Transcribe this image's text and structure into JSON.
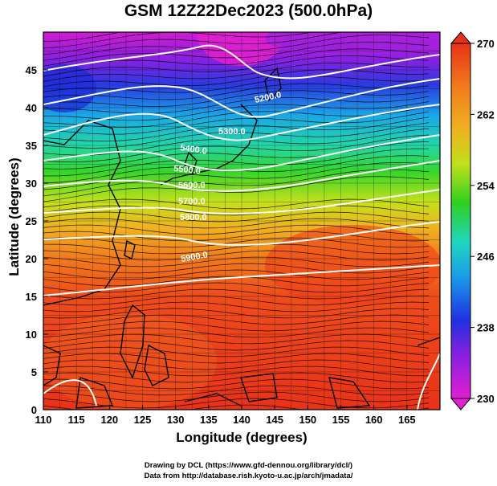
{
  "title": "GSM 12Z22Dec2023 (500.0hPa)",
  "xlabel": "Longitude (degrees)",
  "ylabel": "Latitude  (degrees)",
  "x_ticks": [
    "110",
    "115",
    "120",
    "125",
    "130",
    "135",
    "140",
    "145",
    "150",
    "155",
    "160",
    "165"
  ],
  "y_ticks": [
    "0",
    "5",
    "10",
    "15",
    "20",
    "25",
    "30",
    "35",
    "40",
    "45"
  ],
  "colorbar": {
    "ticks": [
      "230",
      "238",
      "246",
      "254",
      "262",
      "270"
    ],
    "min": 230,
    "max": 270
  },
  "contour_labels": [
    "5200.0",
    "5300.0",
    "5400.0",
    "5500.0",
    "5600.0",
    "5700.0",
    "5800.0",
    "5900.0"
  ],
  "credits": {
    "line1": "Drawing by DCL (https://www.gfd-dennou.org/library/dcl/)",
    "line2": "Data from http://database.rish.kyoto-u.ac.jp/arch/jmadata/"
  },
  "colors": {
    "cold": "#e01fd0",
    "mid": "#2ed020",
    "warm": "#e83218"
  }
}
